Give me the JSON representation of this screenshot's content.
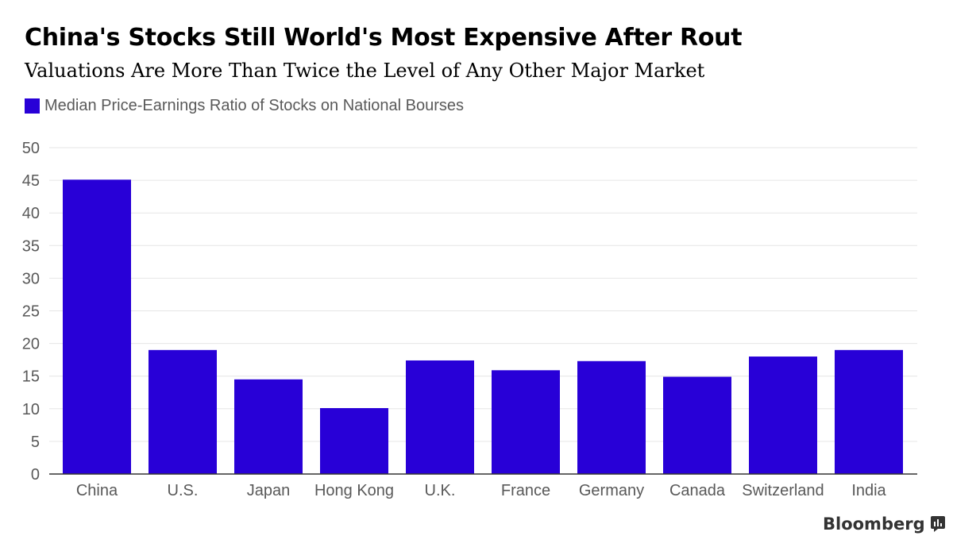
{
  "title": "China's Stocks Still World's Most Expensive After Rout",
  "subtitle": "Valuations Are More Than Twice the Level of Any Other Major Market",
  "brand": {
    "name": "Bloomberg",
    "icon": "bloomberg-chart-icon"
  },
  "colors": {
    "bar": "#2800d7",
    "grid": "#e6e6e6",
    "axis": "#333333",
    "tick_text": "#595959"
  },
  "chart_data": {
    "type": "bar",
    "categories": [
      "China",
      "U.S.",
      "Japan",
      "Hong Kong",
      "U.K.",
      "France",
      "Germany",
      "Canada",
      "Switzerland",
      "India"
    ],
    "series": [
      {
        "name": "Median Price-Earnings Ratio of Stocks on National Bourses",
        "values": [
          45.1,
          19.0,
          14.5,
          10.1,
          17.4,
          15.9,
          17.3,
          14.9,
          18.0,
          19.0
        ]
      }
    ],
    "yticks": [
      0,
      5,
      10,
      15,
      20,
      25,
      30,
      35,
      40,
      45,
      50
    ],
    "ylim": [
      0,
      50
    ],
    "grid": true,
    "legend": "top-left",
    "title": "China's Stocks Still World's Most Expensive After Rout",
    "subtitle": "Valuations Are More Than Twice the Level of Any Other Major Market",
    "xlabel": "",
    "ylabel": ""
  }
}
